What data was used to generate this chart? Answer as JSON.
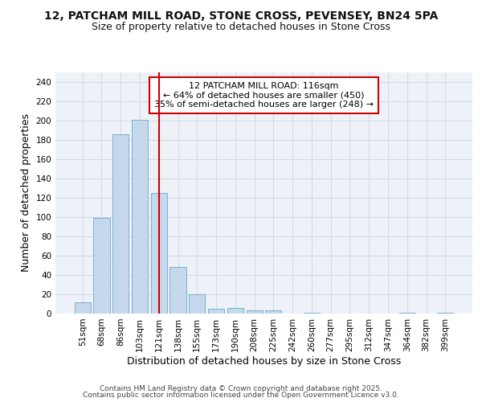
{
  "title_line1": "12, PATCHAM MILL ROAD, STONE CROSS, PEVENSEY, BN24 5PA",
  "title_line2": "Size of property relative to detached houses in Stone Cross",
  "xlabel": "Distribution of detached houses by size in Stone Cross",
  "ylabel": "Number of detached properties",
  "categories": [
    "51sqm",
    "68sqm",
    "86sqm",
    "103sqm",
    "121sqm",
    "138sqm",
    "155sqm",
    "173sqm",
    "190sqm",
    "208sqm",
    "225sqm",
    "242sqm",
    "260sqm",
    "277sqm",
    "295sqm",
    "312sqm",
    "347sqm",
    "364sqm",
    "382sqm",
    "399sqm"
  ],
  "values": [
    12,
    99,
    186,
    201,
    125,
    48,
    20,
    5,
    6,
    3,
    3,
    0,
    1,
    0,
    0,
    0,
    0,
    1,
    0,
    1
  ],
  "bar_color": "#c5d8ec",
  "bar_edge_color": "#7aafd4",
  "red_line_x": 4.0,
  "red_line_color": "#cc0000",
  "annotation_text": "12 PATCHAM MILL ROAD: 116sqm\n← 64% of detached houses are smaller (450)\n35% of semi-detached houses are larger (248) →",
  "annotation_box_facecolor": "#ffffff",
  "annotation_box_edgecolor": "#cc0000",
  "ylim": [
    0,
    250
  ],
  "yticks": [
    0,
    20,
    40,
    60,
    80,
    100,
    120,
    140,
    160,
    180,
    200,
    220,
    240
  ],
  "grid_color": "#d0dce8",
  "plot_bg_color": "#eef2f8",
  "fig_bg_color": "#ffffff",
  "footer_line1": "Contains HM Land Registry data © Crown copyright and database right 2025.",
  "footer_line2": "Contains public sector information licensed under the Open Government Licence v3.0.",
  "title_fontsize": 10,
  "subtitle_fontsize": 9,
  "axis_label_fontsize": 9,
  "tick_fontsize": 7.5,
  "annotation_fontsize": 8,
  "footer_fontsize": 6.5
}
